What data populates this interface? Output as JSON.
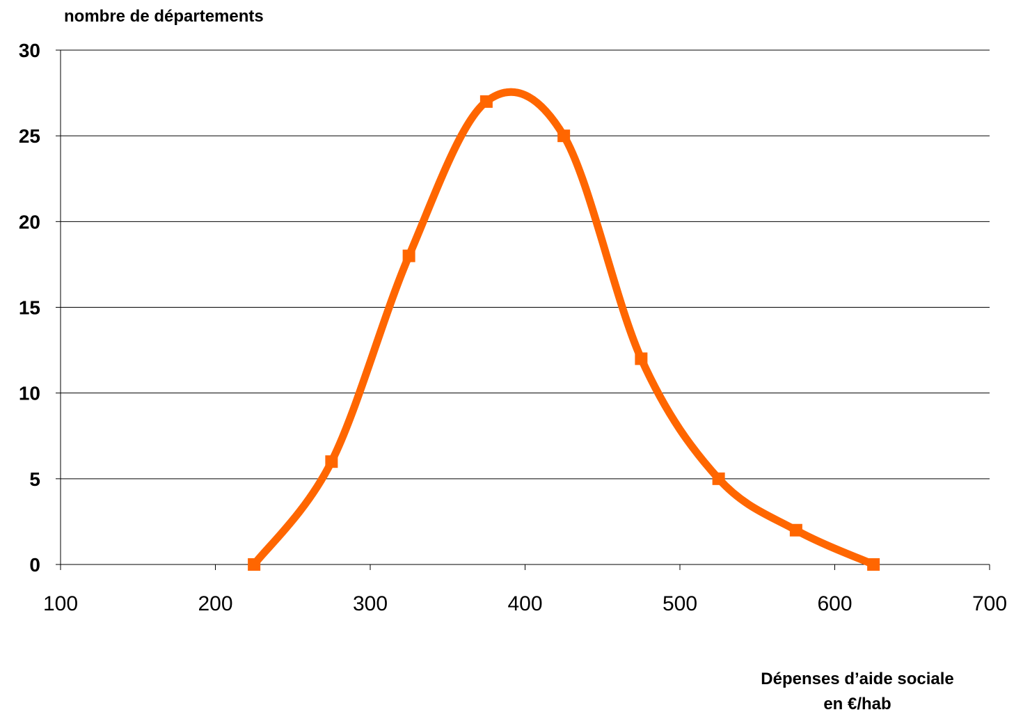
{
  "chart_data": {
    "type": "line",
    "ylabel": "nombre de départements",
    "xlabel_line1": "Dépenses d’aide sociale",
    "xlabel_line2": "en €/hab",
    "xlim": [
      100,
      700
    ],
    "ylim": [
      0,
      30
    ],
    "x_ticks": [
      100,
      200,
      300,
      400,
      500,
      600,
      700
    ],
    "y_ticks": [
      0,
      5,
      10,
      15,
      20,
      25,
      30
    ],
    "grid": "horizontal",
    "series": [
      {
        "color": "#FF6600",
        "smooth": true,
        "marker": "square",
        "x": [
          225,
          275,
          325,
          375,
          425,
          475,
          525,
          575,
          625
        ],
        "y": [
          0,
          6,
          18,
          27,
          25,
          12,
          5,
          2,
          0
        ]
      }
    ]
  }
}
